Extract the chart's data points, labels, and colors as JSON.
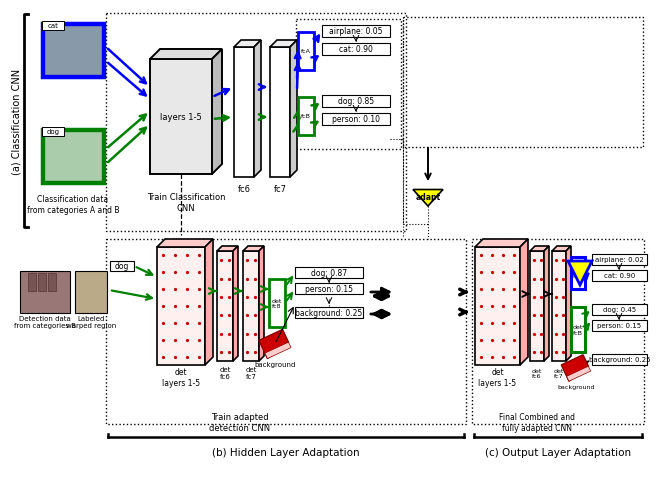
{
  "bg_color": "#ffffff",
  "section_a_label": "(a) Classification CNN",
  "section_b_label": "(b) Hidden Layer Adaptation",
  "section_c_label": "(c) Output Layer Adaptation",
  "classif_outputs_blue": [
    "airplane: 0.05",
    "cat: 0.90"
  ],
  "classif_outputs_green": [
    "dog: 0.85",
    "person: 0.10"
  ],
  "det_outputs_mid": [
    "dog: 0.87",
    "person: 0.15"
  ],
  "det_outputs_mid_bg": "background: 0.25",
  "det_outputs_right_blue": [
    "airplane: 0.02",
    "cat: 0.90"
  ],
  "det_outputs_right_green": [
    "dog: 0.45",
    "person: 0.15"
  ],
  "det_outputs_right_bg": "background: 0.25",
  "adapt_label": "adapt",
  "classif_data_label": "Classification data\nfrom categories A and B",
  "train_classif_label": "Train Classification\nCNN",
  "train_adapted_label": "Train adapted\ndetection CNN",
  "final_combined_label": "Final Combined and\nfully adapted CNN",
  "detection_data_label": "Detection data\nfrom categories B",
  "labeled_warped_label": "Labeled\nwarped region",
  "background_label": "background",
  "layers_15_label": "layers 1-5",
  "fc6_label": "fc6",
  "fc7_label": "fc7",
  "fcA_label": "fcA",
  "fcB_label": "fcB",
  "dog_label": "dog",
  "blue": "#0000ff",
  "green": "#008000",
  "yellow": "#ffff00",
  "black": "#000000",
  "darkgray": "#555555",
  "lightgray": "#cccccc",
  "midgray": "#aaaaaa",
  "red": "#cc0000"
}
